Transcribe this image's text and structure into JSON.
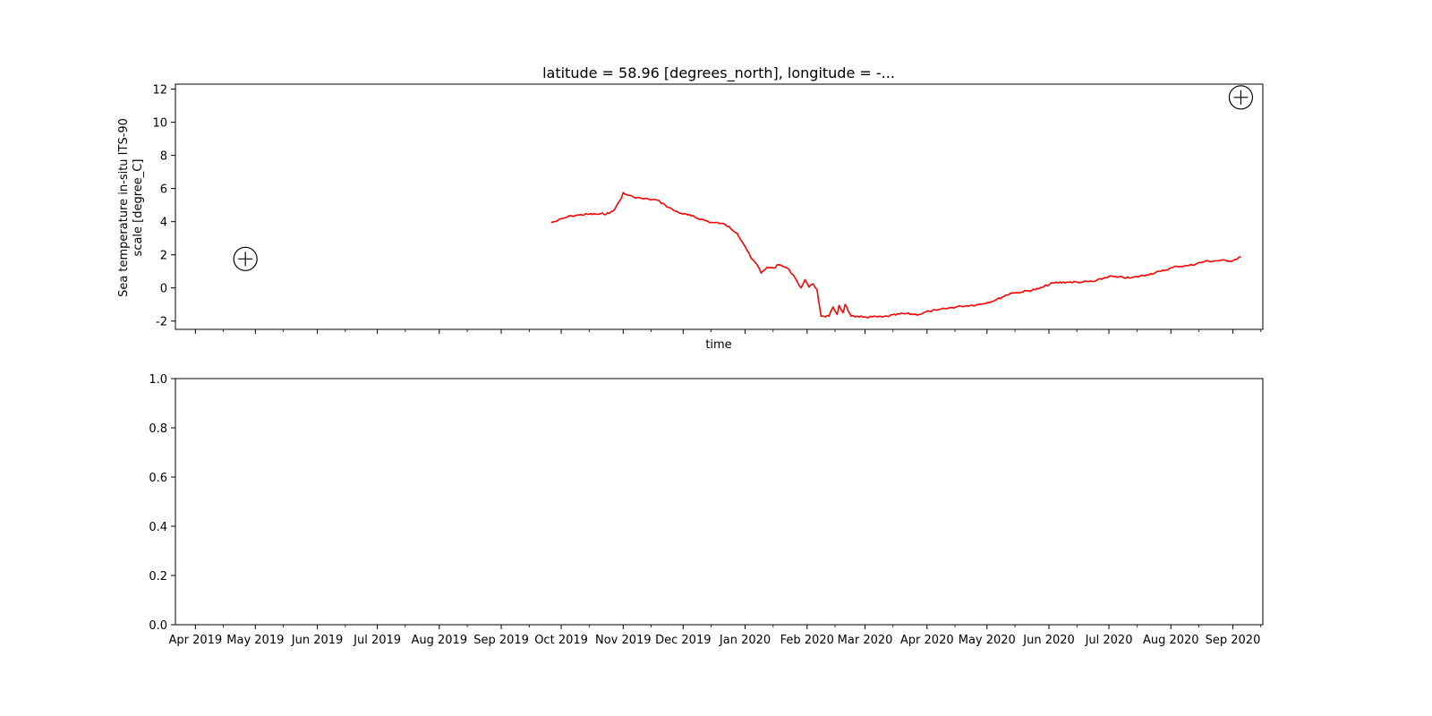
{
  "chart_data": [
    {
      "type": "line",
      "title": "latitude = 58.96 [degrees_north], longitude = -...",
      "xlabel": "time",
      "ylabel_lines": [
        "Sea temperature in-situ ITS-90",
        "scale [degree_C]"
      ],
      "xlim": [
        "2019-03-22",
        "2020-09-16"
      ],
      "ylim": [
        -2.5,
        12.3
      ],
      "yticks": [
        -2,
        0,
        2,
        4,
        6,
        8,
        10,
        12
      ],
      "show_xtick_labels": false,
      "grid": false,
      "series": [
        {
          "color": "#ff0000",
          "x": [
            "2019-09-26",
            "2019-09-29",
            "2019-10-02",
            "2019-10-06",
            "2019-10-10",
            "2019-10-15",
            "2019-10-20",
            "2019-10-25",
            "2019-10-28",
            "2019-10-31",
            "2019-11-01",
            "2019-11-03",
            "2019-11-06",
            "2019-11-10",
            "2019-11-14",
            "2019-11-18",
            "2019-11-22",
            "2019-11-26",
            "2019-11-30",
            "2019-12-05",
            "2019-12-10",
            "2019-12-15",
            "2019-12-20",
            "2019-12-24",
            "2019-12-28",
            "2020-01-01",
            "2020-01-04",
            "2020-01-07",
            "2020-01-09",
            "2020-01-12",
            "2020-01-15",
            "2020-01-18",
            "2020-01-22",
            "2020-01-25",
            "2020-01-27",
            "2020-01-29",
            "2020-01-31",
            "2020-02-02",
            "2020-02-04",
            "2020-02-06",
            "2020-02-08",
            "2020-02-10",
            "2020-02-12",
            "2020-02-14",
            "2020-02-16",
            "2020-02-17",
            "2020-02-19",
            "2020-02-20",
            "2020-02-21",
            "2020-02-22",
            "2020-02-23",
            "2020-02-25",
            "2020-02-27",
            "2020-03-01",
            "2020-03-10",
            "2020-03-20",
            "2020-03-28",
            "2020-04-02",
            "2020-04-06",
            "2020-04-10",
            "2020-04-18",
            "2020-04-27",
            "2020-05-05",
            "2020-05-13",
            "2020-05-15",
            "2020-05-18",
            "2020-05-27",
            "2020-06-03",
            "2020-06-10",
            "2020-06-17",
            "2020-06-24",
            "2020-07-01",
            "2020-07-05",
            "2020-07-12",
            "2020-07-20",
            "2020-07-27",
            "2020-08-04",
            "2020-08-10",
            "2020-08-18",
            "2020-08-25",
            "2020-09-01",
            "2020-09-05"
          ],
          "y": [
            3.95,
            4.05,
            4.2,
            4.35,
            4.4,
            4.45,
            4.45,
            4.5,
            4.8,
            5.4,
            5.75,
            5.6,
            5.5,
            5.4,
            5.35,
            5.3,
            5.0,
            4.7,
            4.5,
            4.35,
            4.15,
            3.95,
            3.9,
            3.7,
            3.3,
            2.5,
            1.8,
            1.4,
            0.9,
            1.25,
            1.2,
            1.4,
            1.2,
            0.8,
            0.4,
            0.0,
            0.5,
            0.05,
            0.25,
            -0.1,
            -1.7,
            -1.75,
            -1.7,
            -1.15,
            -1.6,
            -1.05,
            -1.5,
            -1.0,
            -1.2,
            -1.5,
            -1.7,
            -1.75,
            -1.75,
            -1.75,
            -1.75,
            -1.55,
            -1.6,
            -1.4,
            -1.35,
            -1.25,
            -1.1,
            -1.0,
            -0.75,
            -0.3,
            -0.3,
            -0.25,
            -0.05,
            0.3,
            0.35,
            0.35,
            0.4,
            0.7,
            0.65,
            0.6,
            0.8,
            1.0,
            1.3,
            1.35,
            1.6,
            1.65,
            1.65,
            1.9
          ]
        }
      ],
      "markers": [
        {
          "name": "circle-plus-marker",
          "x": "2019-04-26",
          "y": 1.75
        },
        {
          "name": "circle-plus-marker",
          "x": "2020-09-05",
          "y": 11.5
        }
      ]
    },
    {
      "type": "line",
      "title": "",
      "xlabel": "",
      "ylabel": "",
      "xlim": [
        "2019-03-22",
        "2020-09-16"
      ],
      "ylim": [
        0.0,
        1.0
      ],
      "yticks": [
        0.0,
        0.2,
        0.4,
        0.6,
        0.8,
        1.0
      ],
      "ytick_labels": [
        "0.0",
        "0.2",
        "0.4",
        "0.6",
        "0.8",
        "1.0"
      ],
      "xtick_labels": [
        "Apr 2019",
        "May 2019",
        "Jun 2019",
        "Jul 2019",
        "Aug 2019",
        "Sep 2019",
        "Oct 2019",
        "Nov 2019",
        "Dec 2019",
        "Jan 2020",
        "Feb 2020",
        "Mar 2020",
        "Apr 2020",
        "May 2020",
        "Jun 2020",
        "Jul 2020",
        "Aug 2020",
        "Sep 2020"
      ],
      "xtick_dates": [
        "2019-04-01",
        "2019-05-01",
        "2019-06-01",
        "2019-07-01",
        "2019-08-01",
        "2019-09-01",
        "2019-10-01",
        "2019-11-01",
        "2019-12-01",
        "2020-01-01",
        "2020-02-01",
        "2020-03-01",
        "2020-04-01",
        "2020-05-01",
        "2020-06-01",
        "2020-07-01",
        "2020-08-01",
        "2020-09-01"
      ],
      "grid": false,
      "series": []
    }
  ]
}
